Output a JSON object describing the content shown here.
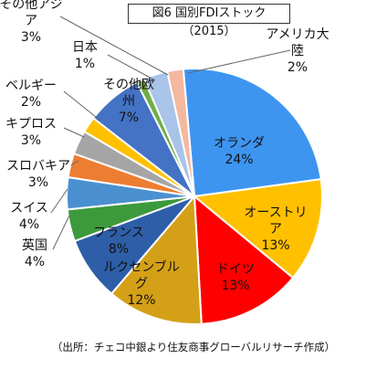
{
  "chart_data": {
    "type": "pie",
    "title": "図6 国別FDIストック（2015）",
    "source": "（出所：チェコ中銀より住友商事グローバルリサーチ作成）",
    "slices": [
      {
        "label": "オランダ",
        "value": 24,
        "value_label": "24%",
        "color": "#3d95f0"
      },
      {
        "label": "オーストリア",
        "value": 13,
        "value_label": "13%",
        "color": "#ffc000"
      },
      {
        "label": "ドイツ",
        "value": 13,
        "value_label": "13%",
        "color": "#ff0000"
      },
      {
        "label": "ルクセンブルグ",
        "value": 12,
        "value_label": "12%",
        "color": "#d4a017"
      },
      {
        "label": "フランス",
        "value": 8,
        "value_label": "8%",
        "color": "#2e5ea8"
      },
      {
        "label": "英国",
        "value": 4,
        "value_label": "4%",
        "color": "#3c9a3c"
      },
      {
        "label": "スイス",
        "value": 4,
        "value_label": "4%",
        "color": "#4a90d0"
      },
      {
        "label": "スロバキア",
        "value": 3,
        "value_label": "3%",
        "color": "#ed7d31"
      },
      {
        "label": "キプロス",
        "value": 3,
        "value_label": "3%",
        "color": "#a5a5a5"
      },
      {
        "label": "ベルギー",
        "value": 2,
        "value_label": "2%",
        "color": "#ffc000"
      },
      {
        "label": "その他欧州",
        "value": 7,
        "value_label": "7%",
        "color": "#4472c4"
      },
      {
        "label": "日本",
        "value": 1,
        "value_label": "1%",
        "color": "#70ad47"
      },
      {
        "label": "その他アジア",
        "value": 3,
        "value_label": "3%",
        "color": "#a9c4e8"
      },
      {
        "label": "アメリカ大陸",
        "value": 2,
        "value_label": "2%",
        "color": "#f4b8a0"
      }
    ]
  }
}
